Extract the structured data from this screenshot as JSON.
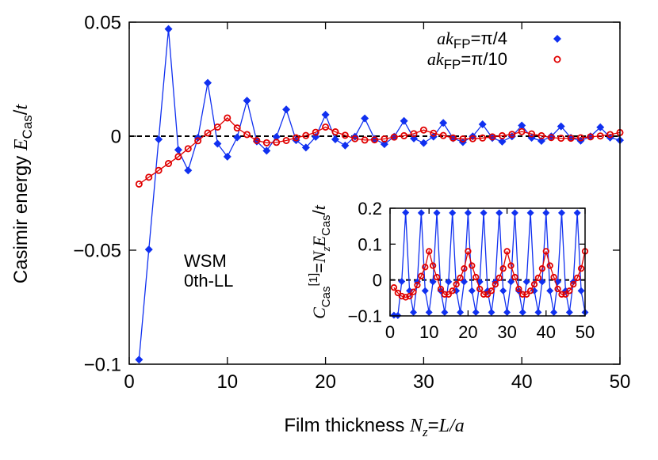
{
  "chart_data": [
    {
      "type": "line",
      "xlabel": [
        "Film thickness ",
        "N",
        "z",
        "=",
        "L/a"
      ],
      "ylabel": [
        "Casimir energy ",
        "E",
        "Cas",
        "/",
        "t"
      ],
      "annotations": [
        "WSM",
        "0th-LL"
      ],
      "legend": "top-right",
      "xlim": [
        0,
        50
      ],
      "ylim": [
        -0.1,
        0.05
      ],
      "xticks": [
        0,
        10,
        20,
        30,
        40,
        50
      ],
      "yticks": [
        {
          "value": -0.1,
          "label": "−0.1"
        },
        {
          "value": -0.05,
          "label": "−0.05"
        },
        0,
        0.05
      ],
      "x": [
        1,
        2,
        3,
        4,
        5,
        6,
        7,
        8,
        9,
        10,
        11,
        12,
        13,
        14,
        15,
        16,
        17,
        18,
        19,
        20,
        21,
        22,
        23,
        24,
        25,
        26,
        27,
        28,
        29,
        30,
        31,
        32,
        33,
        34,
        35,
        36,
        37,
        38,
        39,
        40,
        41,
        42,
        43,
        44,
        45,
        46,
        47,
        48,
        49,
        50
      ],
      "series": [
        {
          "name": [
            "ak",
            "FP",
            "=π/4"
          ],
          "color": "#1030f0",
          "marker": "diamond",
          "values": [
            -0.098,
            -0.0497,
            -0.0014,
            0.047,
            -0.006,
            -0.015,
            -0.0007,
            0.0234,
            -0.0033,
            -0.009,
            -0.0005,
            0.0156,
            -0.0023,
            -0.0064,
            -0.0003,
            0.0117,
            -0.0018,
            -0.005,
            -0.0003,
            0.0094,
            -0.0014,
            -0.0041,
            -0.0002,
            0.0078,
            -0.0012,
            -0.0035,
            -0.0002,
            0.0067,
            -0.001,
            -0.003,
            -0.0002,
            0.0058,
            -0.0009,
            -0.0026,
            -0.0001,
            0.0052,
            -0.0008,
            -0.0024,
            -0.0001,
            0.0047,
            -0.0007,
            -0.0021,
            -0.0001,
            0.0043,
            -0.0007,
            -0.002,
            -0.0001,
            0.0039,
            -0.0006,
            -0.0018
          ]
        },
        {
          "name": [
            "ak",
            "FP",
            "=π/10"
          ],
          "color": "#e00000",
          "marker": "circle",
          "values": [
            -0.021,
            -0.018,
            -0.015,
            -0.012,
            -0.009,
            -0.0055,
            -0.002,
            0.0014,
            0.004,
            0.008,
            0.0036,
            0.0007,
            -0.0019,
            -0.0029,
            -0.0027,
            -0.0019,
            -0.0007,
            0.0003,
            0.0017,
            0.004,
            0.0019,
            0.0004,
            -0.0011,
            -0.0017,
            -0.0016,
            -0.0012,
            -0.0004,
            0.0002,
            0.0011,
            0.0027,
            0.0013,
            0.0003,
            -0.0008,
            -0.0012,
            -0.0011,
            -0.0008,
            -0.0003,
            0.0002,
            0.0008,
            0.002,
            0.001,
            0.0002,
            -0.0006,
            -0.0009,
            -0.0009,
            -0.0007,
            -0.0003,
            0.0001,
            0.0007,
            0.0016
          ]
        }
      ]
    },
    {
      "type": "line",
      "ylabel": [
        "C",
        "Cas",
        "[1]",
        "=",
        "N",
        "z",
        "E",
        "Cas",
        "/",
        "t"
      ],
      "xlim": [
        0,
        50
      ],
      "ylim": [
        -0.1,
        0.2
      ],
      "xticks": [
        0,
        10,
        20,
        30,
        40,
        50
      ],
      "yticks": [
        {
          "value": -0.1,
          "label": "−0.1"
        },
        0,
        0.1,
        0.2
      ],
      "x": [
        1,
        2,
        3,
        4,
        5,
        6,
        7,
        8,
        9,
        10,
        11,
        12,
        13,
        14,
        15,
        16,
        17,
        18,
        19,
        20,
        21,
        22,
        23,
        24,
        25,
        26,
        27,
        28,
        29,
        30,
        31,
        32,
        33,
        34,
        35,
        36,
        37,
        38,
        39,
        40,
        41,
        42,
        43,
        44,
        45,
        46,
        47,
        48,
        49,
        50
      ],
      "series": [
        {
          "color": "#1030f0",
          "marker": "diamond",
          "values": [
            -0.098,
            -0.099,
            -0.004,
            0.188,
            -0.03,
            -0.09,
            -0.005,
            0.187,
            -0.03,
            -0.09,
            -0.005,
            0.187,
            -0.03,
            -0.09,
            -0.005,
            0.187,
            -0.03,
            -0.09,
            -0.005,
            0.187,
            -0.03,
            -0.09,
            -0.005,
            0.187,
            -0.03,
            -0.09,
            -0.005,
            0.187,
            -0.03,
            -0.09,
            -0.005,
            0.187,
            -0.03,
            -0.09,
            -0.005,
            0.187,
            -0.03,
            -0.09,
            -0.005,
            0.187,
            -0.03,
            -0.09,
            -0.005,
            0.187,
            -0.03,
            -0.09,
            -0.005,
            0.187,
            -0.03,
            -0.09
          ]
        },
        {
          "color": "#e00000",
          "marker": "circle",
          "values": [
            -0.021,
            -0.036,
            -0.045,
            -0.048,
            -0.045,
            -0.033,
            -0.014,
            0.011,
            0.036,
            0.08,
            0.04,
            0.008,
            -0.025,
            -0.04,
            -0.04,
            -0.03,
            -0.012,
            0.006,
            0.032,
            0.08,
            0.04,
            0.008,
            -0.025,
            -0.04,
            -0.04,
            -0.03,
            -0.012,
            0.006,
            0.032,
            0.08,
            0.04,
            0.008,
            -0.025,
            -0.04,
            -0.04,
            -0.03,
            -0.012,
            0.006,
            0.032,
            0.08,
            0.04,
            0.008,
            -0.025,
            -0.04,
            -0.04,
            -0.03,
            -0.012,
            0.006,
            0.032,
            0.08
          ]
        }
      ]
    }
  ]
}
